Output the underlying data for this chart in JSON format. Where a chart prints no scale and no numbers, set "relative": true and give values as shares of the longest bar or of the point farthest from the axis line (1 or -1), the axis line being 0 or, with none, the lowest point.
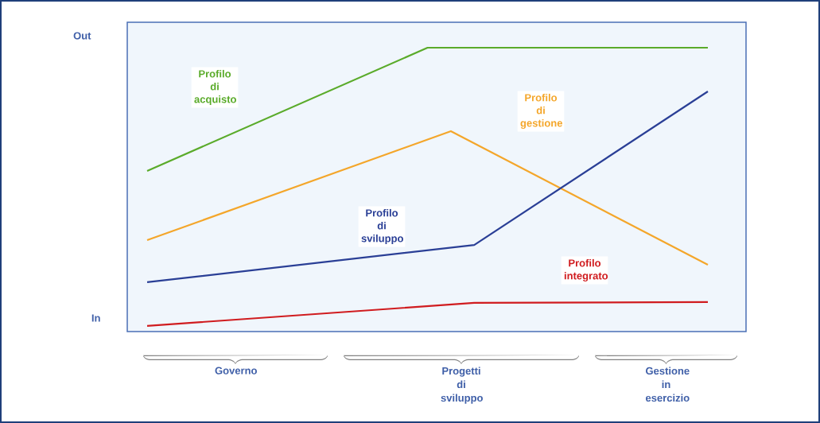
{
  "chart_data": {
    "type": "line",
    "relative": true,
    "categories": [
      null,
      null,
      null,
      null,
      null,
      null,
      null,
      null,
      null,
      null,
      null,
      null,
      null,
      null,
      null,
      null,
      null,
      null,
      null,
      null,
      null,
      null,
      null,
      null,
      null
    ],
    "series": [
      {
        "name": "Profilo di acquisto",
        "color": "#5aab2a",
        "values": [
          0.566,
          null,
          null,
          null,
          null,
          null,
          null,
          null,
          null,
          null,
          null,
          null,
          1,
          null,
          null,
          null,
          null,
          null,
          null,
          null,
          null,
          null,
          null,
          null,
          1
        ]
      },
      {
        "name": "Profilo di gestione",
        "color": "#f4a62a",
        "values": [
          0.322,
          null,
          null,
          null,
          null,
          null,
          null,
          null,
          null,
          null,
          null,
          null,
          null,
          0.706,
          null,
          null,
          null,
          null,
          null,
          null,
          null,
          null,
          null,
          null,
          0.235
        ]
      },
      {
        "name": "Profilo di sviluppo",
        "color": "#2a3f96",
        "values": [
          0.174,
          null,
          null,
          null,
          null,
          null,
          null,
          null,
          null,
          null,
          null,
          null,
          null,
          null,
          0.305,
          null,
          null,
          null,
          null,
          null,
          null,
          null,
          null,
          null,
          0.846
        ]
      },
      {
        "name": "Profilo integrato",
        "color": "#d01c1f",
        "values": [
          0.02,
          null,
          null,
          null,
          null,
          null,
          null,
          null,
          null,
          null,
          null,
          null,
          null,
          null,
          0.101,
          null,
          null,
          null,
          null,
          null,
          null,
          null,
          null,
          null,
          0.104
        ]
      }
    ],
    "annotations": [
      "Out",
      "In",
      "Governo",
      "Progetti di sviluppo",
      "Gestione in esercizio"
    ]
  }
}
